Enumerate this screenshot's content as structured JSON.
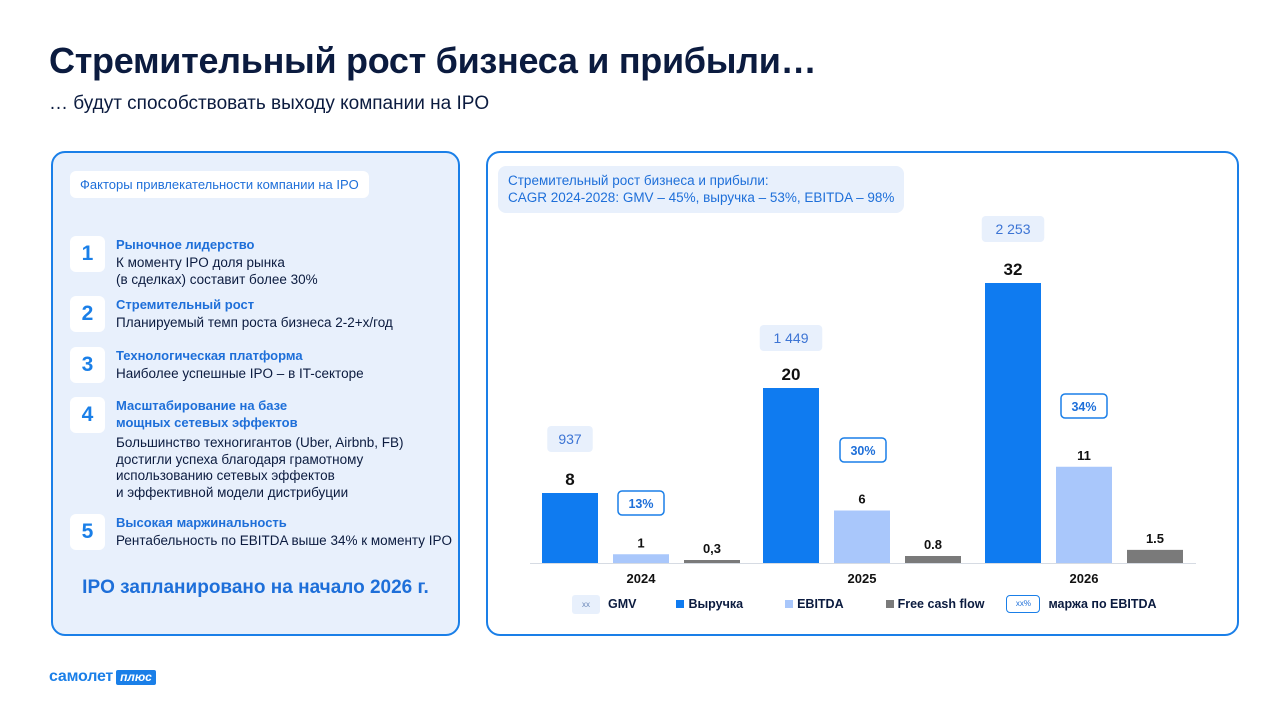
{
  "header": {
    "title": "Стремительный рост бизнеса и прибыли…",
    "subtitle": "… будут способствовать выходу компании на IPO"
  },
  "left_panel": {
    "tag": "Факторы привлекательности компании на IPO",
    "factors": [
      {
        "num": "1",
        "head": "Рыночное лидерство",
        "desc": "К моменту IPO доля рынка\n(в сделках) составит более 30%"
      },
      {
        "num": "2",
        "head": "Стремительный рост",
        "desc": "Планируемый темп роста бизнеса 2-2+x/год"
      },
      {
        "num": "3",
        "head": "Технологическая платформа",
        "desc": "Наиболее успешные IPO – в IT-секторе"
      },
      {
        "num": "4",
        "head": "Масштабирование на базе\nмощных сетевых эффектов",
        "desc": "Большинство техногигантов (Uber, Airbnb, FB)\nдостигли успеха благодаря грамотному\nиспользованию сетевых эффектов\nи эффективной модели дистрибуции"
      },
      {
        "num": "5",
        "head": "Высокая маржинальность",
        "desc": "Рентабельность по EBITDA выше 34% к моменту IPO"
      }
    ],
    "ipo_note": "IPO запланировано на начало 2026 г."
  },
  "right_panel": {
    "tag_line1": "Стремительный рост бизнеса и прибыли:",
    "tag_line2": "CAGR 2024-2028: GMV – 45%, выручка – 53%, EBITDA – 98%"
  },
  "chart_data": {
    "type": "bar",
    "categories": [
      "2024",
      "2025",
      "2026"
    ],
    "series": [
      {
        "name": "Выручка",
        "values": [
          8,
          20,
          32
        ],
        "labels": [
          "8",
          "20",
          "32"
        ],
        "color": "#0f7bf0"
      },
      {
        "name": "EBITDA",
        "values": [
          1,
          6,
          11
        ],
        "labels": [
          "1",
          "6",
          "11"
        ],
        "color": "#a9c7fb"
      },
      {
        "name": "Free cash flow",
        "values": [
          0.3,
          0.8,
          1.5
        ],
        "labels": [
          "0,3",
          "0.8",
          "1.5"
        ],
        "color": "#7a7a7a"
      }
    ],
    "gmv": {
      "name": "GMV",
      "values": [
        937,
        1449,
        2253
      ],
      "labels": [
        "937",
        "1 449",
        "2 253"
      ]
    },
    "ebitda_margin": {
      "name": "маржа по EBITDA",
      "labels": [
        "13%",
        "30%",
        "34%"
      ]
    },
    "ylim": [
      0,
      32
    ]
  },
  "legend": {
    "gmv_box": "xx",
    "gmv_label": "GMV",
    "revenue_label": "Выручка",
    "ebitda_label": "EBITDA",
    "fcf_label": "Free cash flow",
    "margin_box": "xx%",
    "margin_label": "маржа по EBITDA"
  },
  "logo": {
    "word1": "самолет",
    "word2": "плюс"
  }
}
